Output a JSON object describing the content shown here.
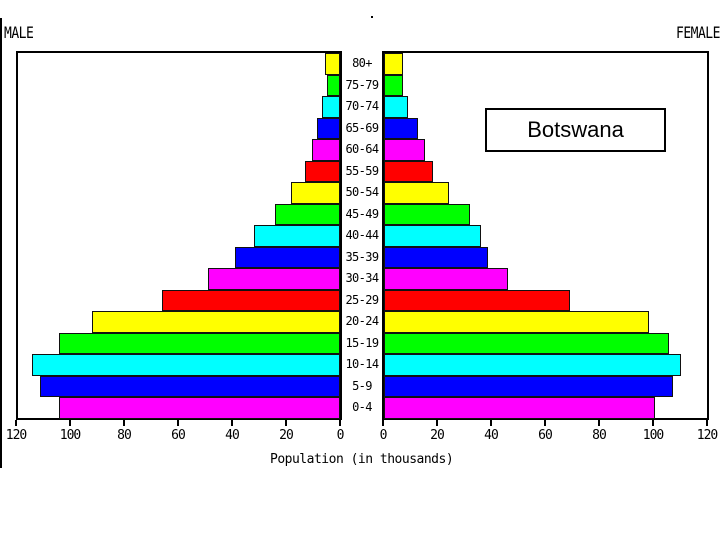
{
  "chart_data": {
    "type": "bar",
    "subtype": "population-pyramid",
    "title": "Botswana",
    "xlabel": "Population (in thousands)",
    "ylabel": "",
    "left_label": "MALE",
    "right_label": "FEMALE",
    "xlim": [
      0,
      120
    ],
    "x_ticks_male": [
      "120",
      "100",
      "80",
      "60",
      "40",
      "20",
      "0"
    ],
    "x_ticks_female": [
      "0",
      "20",
      "40",
      "60",
      "80",
      "100",
      "120"
    ],
    "categories": [
      "80+",
      "75-79",
      "70-74",
      "65-69",
      "60-64",
      "55-59",
      "50-54",
      "45-49",
      "40-44",
      "35-39",
      "30-34",
      "25-29",
      "20-24",
      "15-19",
      "10-14",
      "5-9",
      "0-4"
    ],
    "series": [
      {
        "name": "Male",
        "values": [
          5.5,
          5,
          6.5,
          8.5,
          10.5,
          13,
          18,
          24,
          32,
          39,
          49,
          66,
          92,
          104,
          114,
          111,
          104
        ]
      },
      {
        "name": "Female",
        "values": [
          7,
          7,
          9,
          12.5,
          15,
          18,
          24,
          32,
          36,
          38.5,
          46,
          69,
          98,
          105.5,
          110,
          107,
          100.5
        ]
      }
    ],
    "bar_colors": [
      "#ffff00",
      "#00ff00",
      "#00ffff",
      "#0000ff",
      "#ff00ff",
      "#ff0000",
      "#ffff00",
      "#00ff00",
      "#00ffff",
      "#0000ff",
      "#ff00ff",
      "#ff0000",
      "#ffff00",
      "#00ff00",
      "#00ffff",
      "#0000ff",
      "#ff00ff"
    ],
    "grid": false,
    "legend": "none"
  }
}
